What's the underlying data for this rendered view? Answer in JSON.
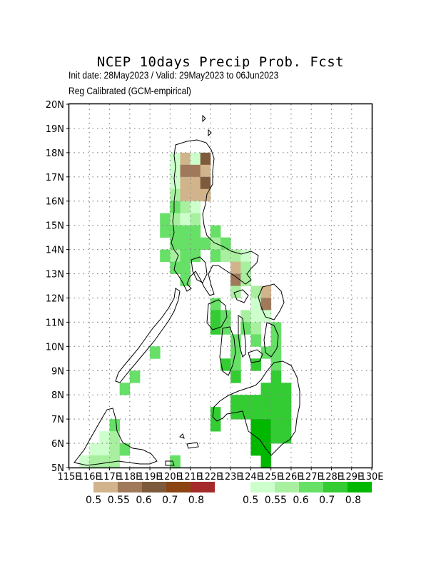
{
  "title": "NCEP 10days Precip Prob. Fcst",
  "init_line": "Init date: 28May2023 / Valid: 29May2023 to 06Jun2023",
  "calib_line": "Reg Calibrated (GCM-empirical)",
  "map": {
    "lon_range": [
      115,
      130
    ],
    "lat_range": [
      5,
      20
    ],
    "lat_labels": [
      "5N",
      "6N",
      "7N",
      "8N",
      "9N",
      "10N",
      "11N",
      "12N",
      "13N",
      "14N",
      "15N",
      "16N",
      "17N",
      "18N",
      "19N",
      "20N"
    ],
    "lon_labels": [
      "115E",
      "116E",
      "117E",
      "118E",
      "119E",
      "120E",
      "121E",
      "122E",
      "123E",
      "124E",
      "125E",
      "126E",
      "127E",
      "128E",
      "129E",
      "130E"
    ],
    "grid": "dotted",
    "cell_deg": 0.5
  },
  "legend_dry": {
    "labels": [
      "0.5",
      "0.55",
      "0.6",
      "0.7",
      "0.8"
    ],
    "colors": [
      "#d2b48c",
      "#a0785a",
      "#7d5a3c",
      "#8b4513",
      "#a52a2a"
    ]
  },
  "legend_wet": {
    "labels": [
      "0.5",
      "0.55",
      "0.6",
      "0.7",
      "0.8"
    ],
    "colors": [
      "#ccffcc",
      "#a8f0a0",
      "#66e066",
      "#33cc33",
      "#00b800"
    ]
  },
  "cells": [
    {
      "lon": 120.25,
      "lat": 17.75,
      "c": "w1"
    },
    {
      "lon": 120.75,
      "lat": 17.75,
      "c": "d1"
    },
    {
      "lon": 121.25,
      "lat": 17.75,
      "c": "w1"
    },
    {
      "lon": 121.75,
      "lat": 17.75,
      "c": "d3"
    },
    {
      "lon": 120.25,
      "lat": 17.25,
      "c": "w1"
    },
    {
      "lon": 120.75,
      "lat": 17.25,
      "c": "d2"
    },
    {
      "lon": 121.25,
      "lat": 17.25,
      "c": "d2"
    },
    {
      "lon": 121.75,
      "lat": 17.25,
      "c": "d1"
    },
    {
      "lon": 120.25,
      "lat": 16.75,
      "c": "w1"
    },
    {
      "lon": 120.75,
      "lat": 16.75,
      "c": "d1"
    },
    {
      "lon": 121.25,
      "lat": 16.75,
      "c": "d1"
    },
    {
      "lon": 121.75,
      "lat": 16.75,
      "c": "d3"
    },
    {
      "lon": 120.25,
      "lat": 16.25,
      "c": "w2"
    },
    {
      "lon": 120.75,
      "lat": 16.25,
      "c": "d1"
    },
    {
      "lon": 121.25,
      "lat": 16.25,
      "c": "d1"
    },
    {
      "lon": 121.75,
      "lat": 16.25,
      "c": "d1"
    },
    {
      "lon": 120.25,
      "lat": 15.75,
      "c": "w3"
    },
    {
      "lon": 120.75,
      "lat": 15.75,
      "c": "w2"
    },
    {
      "lon": 121.25,
      "lat": 15.75,
      "c": "w1"
    },
    {
      "lon": 119.75,
      "lat": 15.25,
      "c": "w3"
    },
    {
      "lon": 120.25,
      "lat": 15.25,
      "c": "w2"
    },
    {
      "lon": 120.75,
      "lat": 15.25,
      "c": "w1"
    },
    {
      "lon": 121.25,
      "lat": 15.25,
      "c": "w2"
    },
    {
      "lon": 119.75,
      "lat": 14.75,
      "c": "w3"
    },
    {
      "lon": 120.25,
      "lat": 14.75,
      "c": "w3"
    },
    {
      "lon": 120.75,
      "lat": 14.75,
      "c": "w3"
    },
    {
      "lon": 121.25,
      "lat": 14.75,
      "c": "w3"
    },
    {
      "lon": 122.25,
      "lat": 14.75,
      "c": "w3"
    },
    {
      "lon": 120.25,
      "lat": 14.25,
      "c": "w3"
    },
    {
      "lon": 120.75,
      "lat": 14.25,
      "c": "w3"
    },
    {
      "lon": 121.25,
      "lat": 14.25,
      "c": "w3"
    },
    {
      "lon": 121.75,
      "lat": 14.25,
      "c": "w3"
    },
    {
      "lon": 122.25,
      "lat": 14.25,
      "c": "w2"
    },
    {
      "lon": 122.75,
      "lat": 14.25,
      "c": "w3"
    },
    {
      "lon": 119.75,
      "lat": 13.75,
      "c": "w3"
    },
    {
      "lon": 120.25,
      "lat": 13.75,
      "c": "w2"
    },
    {
      "lon": 120.75,
      "lat": 13.75,
      "c": "w3"
    },
    {
      "lon": 121.25,
      "lat": 13.75,
      "c": "w3"
    },
    {
      "lon": 122.25,
      "lat": 13.75,
      "c": "w3"
    },
    {
      "lon": 122.75,
      "lat": 13.75,
      "c": "w2"
    },
    {
      "lon": 123.25,
      "lat": 13.75,
      "c": "w2"
    },
    {
      "lon": 123.75,
      "lat": 13.75,
      "c": "w1"
    },
    {
      "lon": 120.25,
      "lat": 13.25,
      "c": "w3"
    },
    {
      "lon": 120.75,
      "lat": 13.25,
      "c": "w3"
    },
    {
      "lon": 123.25,
      "lat": 13.25,
      "c": "d1"
    },
    {
      "lon": 123.75,
      "lat": 13.25,
      "c": "w2"
    },
    {
      "lon": 120.75,
      "lat": 12.75,
      "c": "w3"
    },
    {
      "lon": 123.25,
      "lat": 12.75,
      "c": "d2"
    },
    {
      "lon": 123.75,
      "lat": 12.75,
      "c": "w2"
    },
    {
      "lon": 123.25,
      "lat": 12.25,
      "c": "w2"
    },
    {
      "lon": 124.25,
      "lat": 12.25,
      "c": "w2"
    },
    {
      "lon": 124.75,
      "lat": 12.25,
      "c": "d1"
    },
    {
      "lon": 122.25,
      "lat": 11.75,
      "c": "w3"
    },
    {
      "lon": 124.25,
      "lat": 11.75,
      "c": "w1"
    },
    {
      "lon": 124.75,
      "lat": 11.75,
      "c": "d2"
    },
    {
      "lon": 122.25,
      "lat": 11.25,
      "c": "w4"
    },
    {
      "lon": 122.75,
      "lat": 11.25,
      "c": "w3"
    },
    {
      "lon": 123.75,
      "lat": 11.25,
      "c": "w2"
    },
    {
      "lon": 124.25,
      "lat": 11.25,
      "c": "w1"
    },
    {
      "lon": 124.75,
      "lat": 11.25,
      "c": "w1"
    },
    {
      "lon": 122.25,
      "lat": 10.75,
      "c": "w4"
    },
    {
      "lon": 122.75,
      "lat": 10.75,
      "c": "w3"
    },
    {
      "lon": 123.75,
      "lat": 10.75,
      "c": "w3"
    },
    {
      "lon": 124.25,
      "lat": 10.75,
      "c": "w2"
    },
    {
      "lon": 125.25,
      "lat": 10.75,
      "c": "w3"
    },
    {
      "lon": 123.25,
      "lat": 10.25,
      "c": "w3"
    },
    {
      "lon": 124.25,
      "lat": 10.25,
      "c": "w3"
    },
    {
      "lon": 125.25,
      "lat": 10.25,
      "c": "w3"
    },
    {
      "lon": 119.25,
      "lat": 9.75,
      "c": "w3"
    },
    {
      "lon": 123.25,
      "lat": 9.75,
      "c": "w3"
    },
    {
      "lon": 124.75,
      "lat": 9.75,
      "c": "w3"
    },
    {
      "lon": 125.25,
      "lat": 9.75,
      "c": "w3"
    },
    {
      "lon": 122.75,
      "lat": 9.25,
      "c": "w4"
    },
    {
      "lon": 123.25,
      "lat": 9.25,
      "c": "w3"
    },
    {
      "lon": 124.25,
      "lat": 9.25,
      "c": "w4"
    },
    {
      "lon": 125.25,
      "lat": 9.25,
      "c": "w3"
    },
    {
      "lon": 118.25,
      "lat": 8.75,
      "c": "w3"
    },
    {
      "lon": 123.25,
      "lat": 8.75,
      "c": "w4"
    },
    {
      "lon": 125.25,
      "lat": 8.75,
      "c": "w4"
    },
    {
      "lon": 117.75,
      "lat": 8.25,
      "c": "w3"
    },
    {
      "lon": 124.75,
      "lat": 8.25,
      "c": "w4"
    },
    {
      "lon": 125.25,
      "lat": 8.25,
      "c": "w4"
    },
    {
      "lon": 125.75,
      "lat": 8.25,
      "c": "w4"
    },
    {
      "lon": 123.25,
      "lat": 7.75,
      "c": "w4"
    },
    {
      "lon": 123.75,
      "lat": 7.75,
      "c": "w4"
    },
    {
      "lon": 124.25,
      "lat": 7.75,
      "c": "w4"
    },
    {
      "lon": 124.75,
      "lat": 7.75,
      "c": "w4"
    },
    {
      "lon": 125.25,
      "lat": 7.75,
      "c": "w4"
    },
    {
      "lon": 125.75,
      "lat": 7.75,
      "c": "w4"
    },
    {
      "lon": 122.25,
      "lat": 7.25,
      "c": "w4"
    },
    {
      "lon": 123.25,
      "lat": 7.25,
      "c": "w4"
    },
    {
      "lon": 123.75,
      "lat": 7.25,
      "c": "w4"
    },
    {
      "lon": 124.25,
      "lat": 7.25,
      "c": "w4"
    },
    {
      "lon": 124.75,
      "lat": 7.25,
      "c": "w4"
    },
    {
      "lon": 125.25,
      "lat": 7.25,
      "c": "w4"
    },
    {
      "lon": 125.75,
      "lat": 7.25,
      "c": "w4"
    },
    {
      "lon": 117.25,
      "lat": 6.75,
      "c": "w3"
    },
    {
      "lon": 122.25,
      "lat": 6.75,
      "c": "w4"
    },
    {
      "lon": 124.25,
      "lat": 6.75,
      "c": "w5"
    },
    {
      "lon": 124.75,
      "lat": 6.75,
      "c": "w5"
    },
    {
      "lon": 125.25,
      "lat": 6.75,
      "c": "w4"
    },
    {
      "lon": 125.75,
      "lat": 6.75,
      "c": "w4"
    },
    {
      "lon": 116.75,
      "lat": 6.25,
      "c": "w1"
    },
    {
      "lon": 117.25,
      "lat": 6.25,
      "c": "w2"
    },
    {
      "lon": 124.25,
      "lat": 6.25,
      "c": "w5"
    },
    {
      "lon": 124.75,
      "lat": 6.25,
      "c": "w5"
    },
    {
      "lon": 125.25,
      "lat": 6.25,
      "c": "w4"
    },
    {
      "lon": 125.75,
      "lat": 6.25,
      "c": "w4"
    },
    {
      "lon": 116.25,
      "lat": 5.75,
      "c": "w1"
    },
    {
      "lon": 116.75,
      "lat": 5.75,
      "c": "w1"
    },
    {
      "lon": 117.25,
      "lat": 5.75,
      "c": "w2"
    },
    {
      "lon": 117.75,
      "lat": 5.75,
      "c": "w3"
    },
    {
      "lon": 124.25,
      "lat": 5.75,
      "c": "w5"
    },
    {
      "lon": 124.75,
      "lat": 5.75,
      "c": "w5"
    },
    {
      "lon": 115.75,
      "lat": 5.25,
      "c": "w1"
    },
    {
      "lon": 116.25,
      "lat": 5.25,
      "c": "w2"
    },
    {
      "lon": 116.75,
      "lat": 5.25,
      "c": "w2"
    },
    {
      "lon": 117.25,
      "lat": 5.25,
      "c": "w2"
    },
    {
      "lon": 120.25,
      "lat": 5.25,
      "c": "w3"
    },
    {
      "lon": 124.75,
      "lat": 5.25,
      "c": "w5"
    }
  ]
}
